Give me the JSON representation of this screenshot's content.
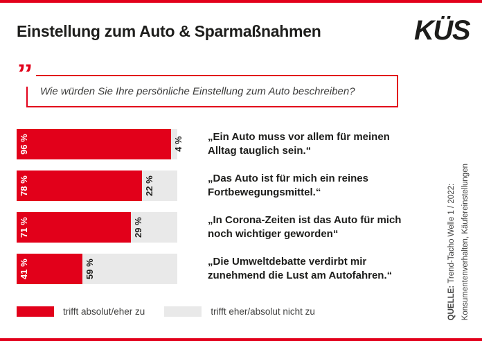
{
  "page": {
    "background": "#ffffff",
    "accent_red": "#e2001a",
    "light_gray": "#e9e9e9",
    "text_dark": "#1d1d1b",
    "text_gray": "#3f3f3e"
  },
  "header": {
    "title": "Einstellung zum Auto & Sparmaßnahmen",
    "logo": "KÜS"
  },
  "question": {
    "quote_mark": "”",
    "text": "Wie würden Sie Ihre persönliche Einstellung zum Auto beschreiben?"
  },
  "chart_data": {
    "type": "bar",
    "variant": "horizontal_stacked",
    "unit": "%",
    "xlim": [
      0,
      100
    ],
    "legend_position": "bottom",
    "value_label_format": "{value} %",
    "categories": [
      "„Ein Auto muss vor allem für meinen Alltag tauglich sein.“",
      "„Das Auto ist für mich ein reines Fortbewegungsmittel.“",
      "„In Corona-Zeiten ist das Auto für mich noch wichtiger geworden“",
      "„Die Umweltdebatte verdirbt mir zunehmend die Lust am Autofahren.“"
    ],
    "series": [
      {
        "name": "trifft absolut/eher zu",
        "color": "#e2001a",
        "values": [
          96,
          78,
          71,
          41
        ]
      },
      {
        "name": "trifft eher/absolut nicht zu",
        "color": "#e9e9e9",
        "values": [
          4,
          22,
          29,
          59
        ]
      }
    ]
  },
  "source": {
    "label": "QUELLE:",
    "line1": "Trend-Tacho Welle 1 / 2022:",
    "line2": "Konsumentenverhalten, Käufereinstellungen"
  }
}
